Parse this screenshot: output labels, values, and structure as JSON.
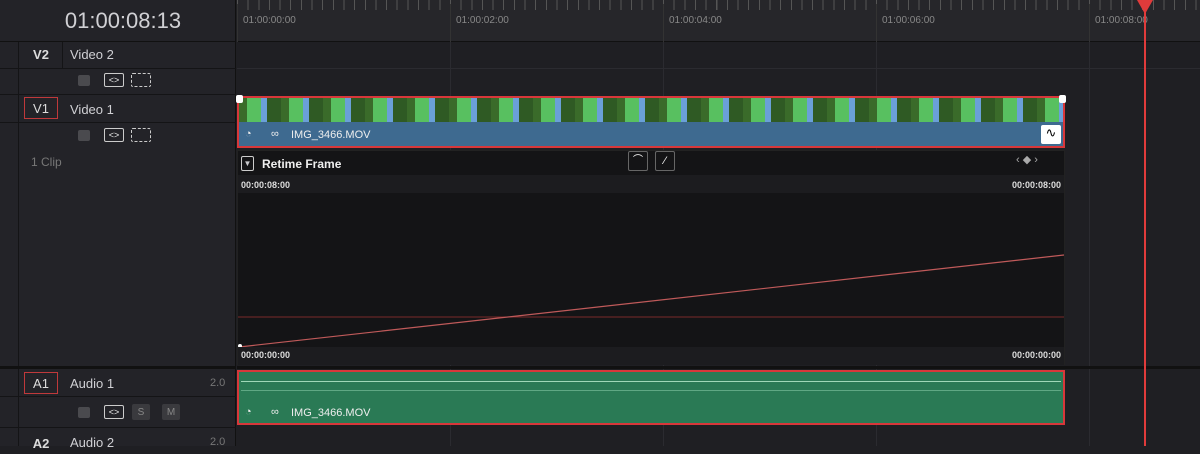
{
  "timecode": "01:00:08:13",
  "ruler": {
    "labels": [
      "01:00:00:00",
      "01:00:02:00",
      "01:00:04:00",
      "01:00:06:00",
      "01:00:08:00"
    ]
  },
  "tracks": {
    "v2": {
      "id": "V2",
      "name": "Video 2"
    },
    "v1": {
      "id": "V1",
      "name": "Video 1",
      "clip_count": "1 Clip"
    },
    "a1": {
      "id": "A1",
      "name": "Audio 1",
      "channels": "2.0",
      "solo": "S",
      "mute": "M"
    },
    "a2": {
      "id": "A2",
      "name": "Audio 2",
      "channels": "2.0"
    }
  },
  "clip": {
    "name": "IMG_3466.MOV",
    "audio_name": "IMG_3466.MOV"
  },
  "retime": {
    "title": "Retime Frame",
    "top_left": "00:00:08:00",
    "top_right": "00:00:08:00",
    "bottom_left": "00:00:00:00",
    "bottom_right": "00:00:00:00"
  },
  "colors": {
    "selection": "#d8373a",
    "video_clip": "#3e6a90",
    "audio_clip": "#2a7a55",
    "playhead": "#e03b3b"
  }
}
